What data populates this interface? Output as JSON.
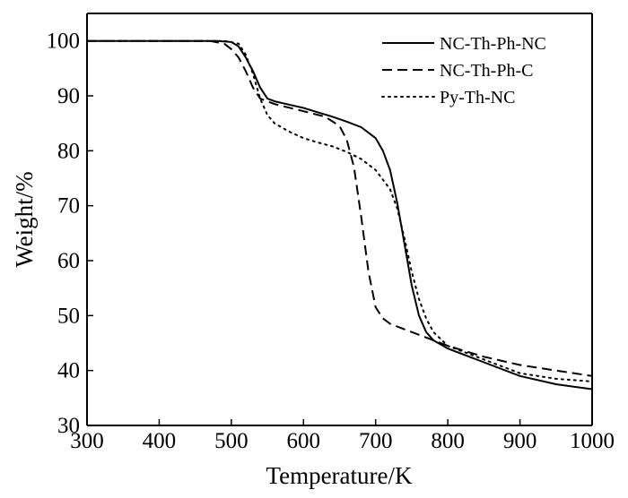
{
  "chart_data": {
    "type": "line",
    "title": "",
    "xlabel": "Temperature/K",
    "ylabel": "Weight/%",
    "xlim": [
      300,
      1000
    ],
    "ylim": [
      30,
      105
    ],
    "xticks": [
      300,
      400,
      500,
      600,
      700,
      800,
      900,
      1000
    ],
    "yticks": [
      30,
      40,
      50,
      60,
      70,
      80,
      90,
      100
    ],
    "grid": false,
    "legend_position": "top-right",
    "series": [
      {
        "name": "NC-Th-Ph-NC",
        "style": "solid",
        "x": [
          300,
          480,
          500,
          510,
          520,
          530,
          540,
          550,
          560,
          580,
          600,
          620,
          640,
          660,
          680,
          700,
          710,
          720,
          730,
          740,
          750,
          760,
          770,
          780,
          800,
          850,
          900,
          950,
          1000
        ],
        "y": [
          100,
          100,
          99.8,
          99,
          97,
          94.5,
          91.5,
          89.5,
          89,
          88.4,
          87.8,
          87,
          86.2,
          85.3,
          84.3,
          82.3,
          80,
          76.5,
          70.5,
          63,
          55.5,
          50,
          47,
          45.5,
          44,
          41.5,
          39,
          37.5,
          36.6
        ]
      },
      {
        "name": "NC-Th-Ph-C",
        "style": "dashed",
        "x": [
          300,
          470,
          490,
          500,
          510,
          520,
          530,
          540,
          560,
          600,
          630,
          650,
          660,
          670,
          680,
          690,
          700,
          710,
          720,
          740,
          760,
          780,
          800,
          850,
          900,
          950,
          1000
        ],
        "y": [
          100,
          100,
          99.5,
          98.5,
          97,
          94.5,
          91.5,
          89.5,
          88.5,
          87.2,
          86.2,
          84.5,
          82,
          77,
          68,
          58,
          51.5,
          49.5,
          48.5,
          47.5,
          46.5,
          45.5,
          44.5,
          42.5,
          41,
          40,
          39
        ]
      },
      {
        "name": "Py-Th-NC",
        "style": "dotted",
        "x": [
          300,
          490,
          510,
          520,
          530,
          540,
          550,
          560,
          580,
          600,
          620,
          640,
          660,
          680,
          700,
          720,
          730,
          740,
          750,
          760,
          770,
          780,
          800,
          850,
          900,
          950,
          1000
        ],
        "y": [
          100,
          100,
          99.5,
          97.5,
          94,
          89.5,
          86.5,
          85,
          83.5,
          82.3,
          81.5,
          80.8,
          79.8,
          78.5,
          76.5,
          73,
          69.5,
          64,
          58,
          53,
          49.5,
          47,
          44.5,
          42,
          39.5,
          38.5,
          38
        ]
      }
    ]
  }
}
